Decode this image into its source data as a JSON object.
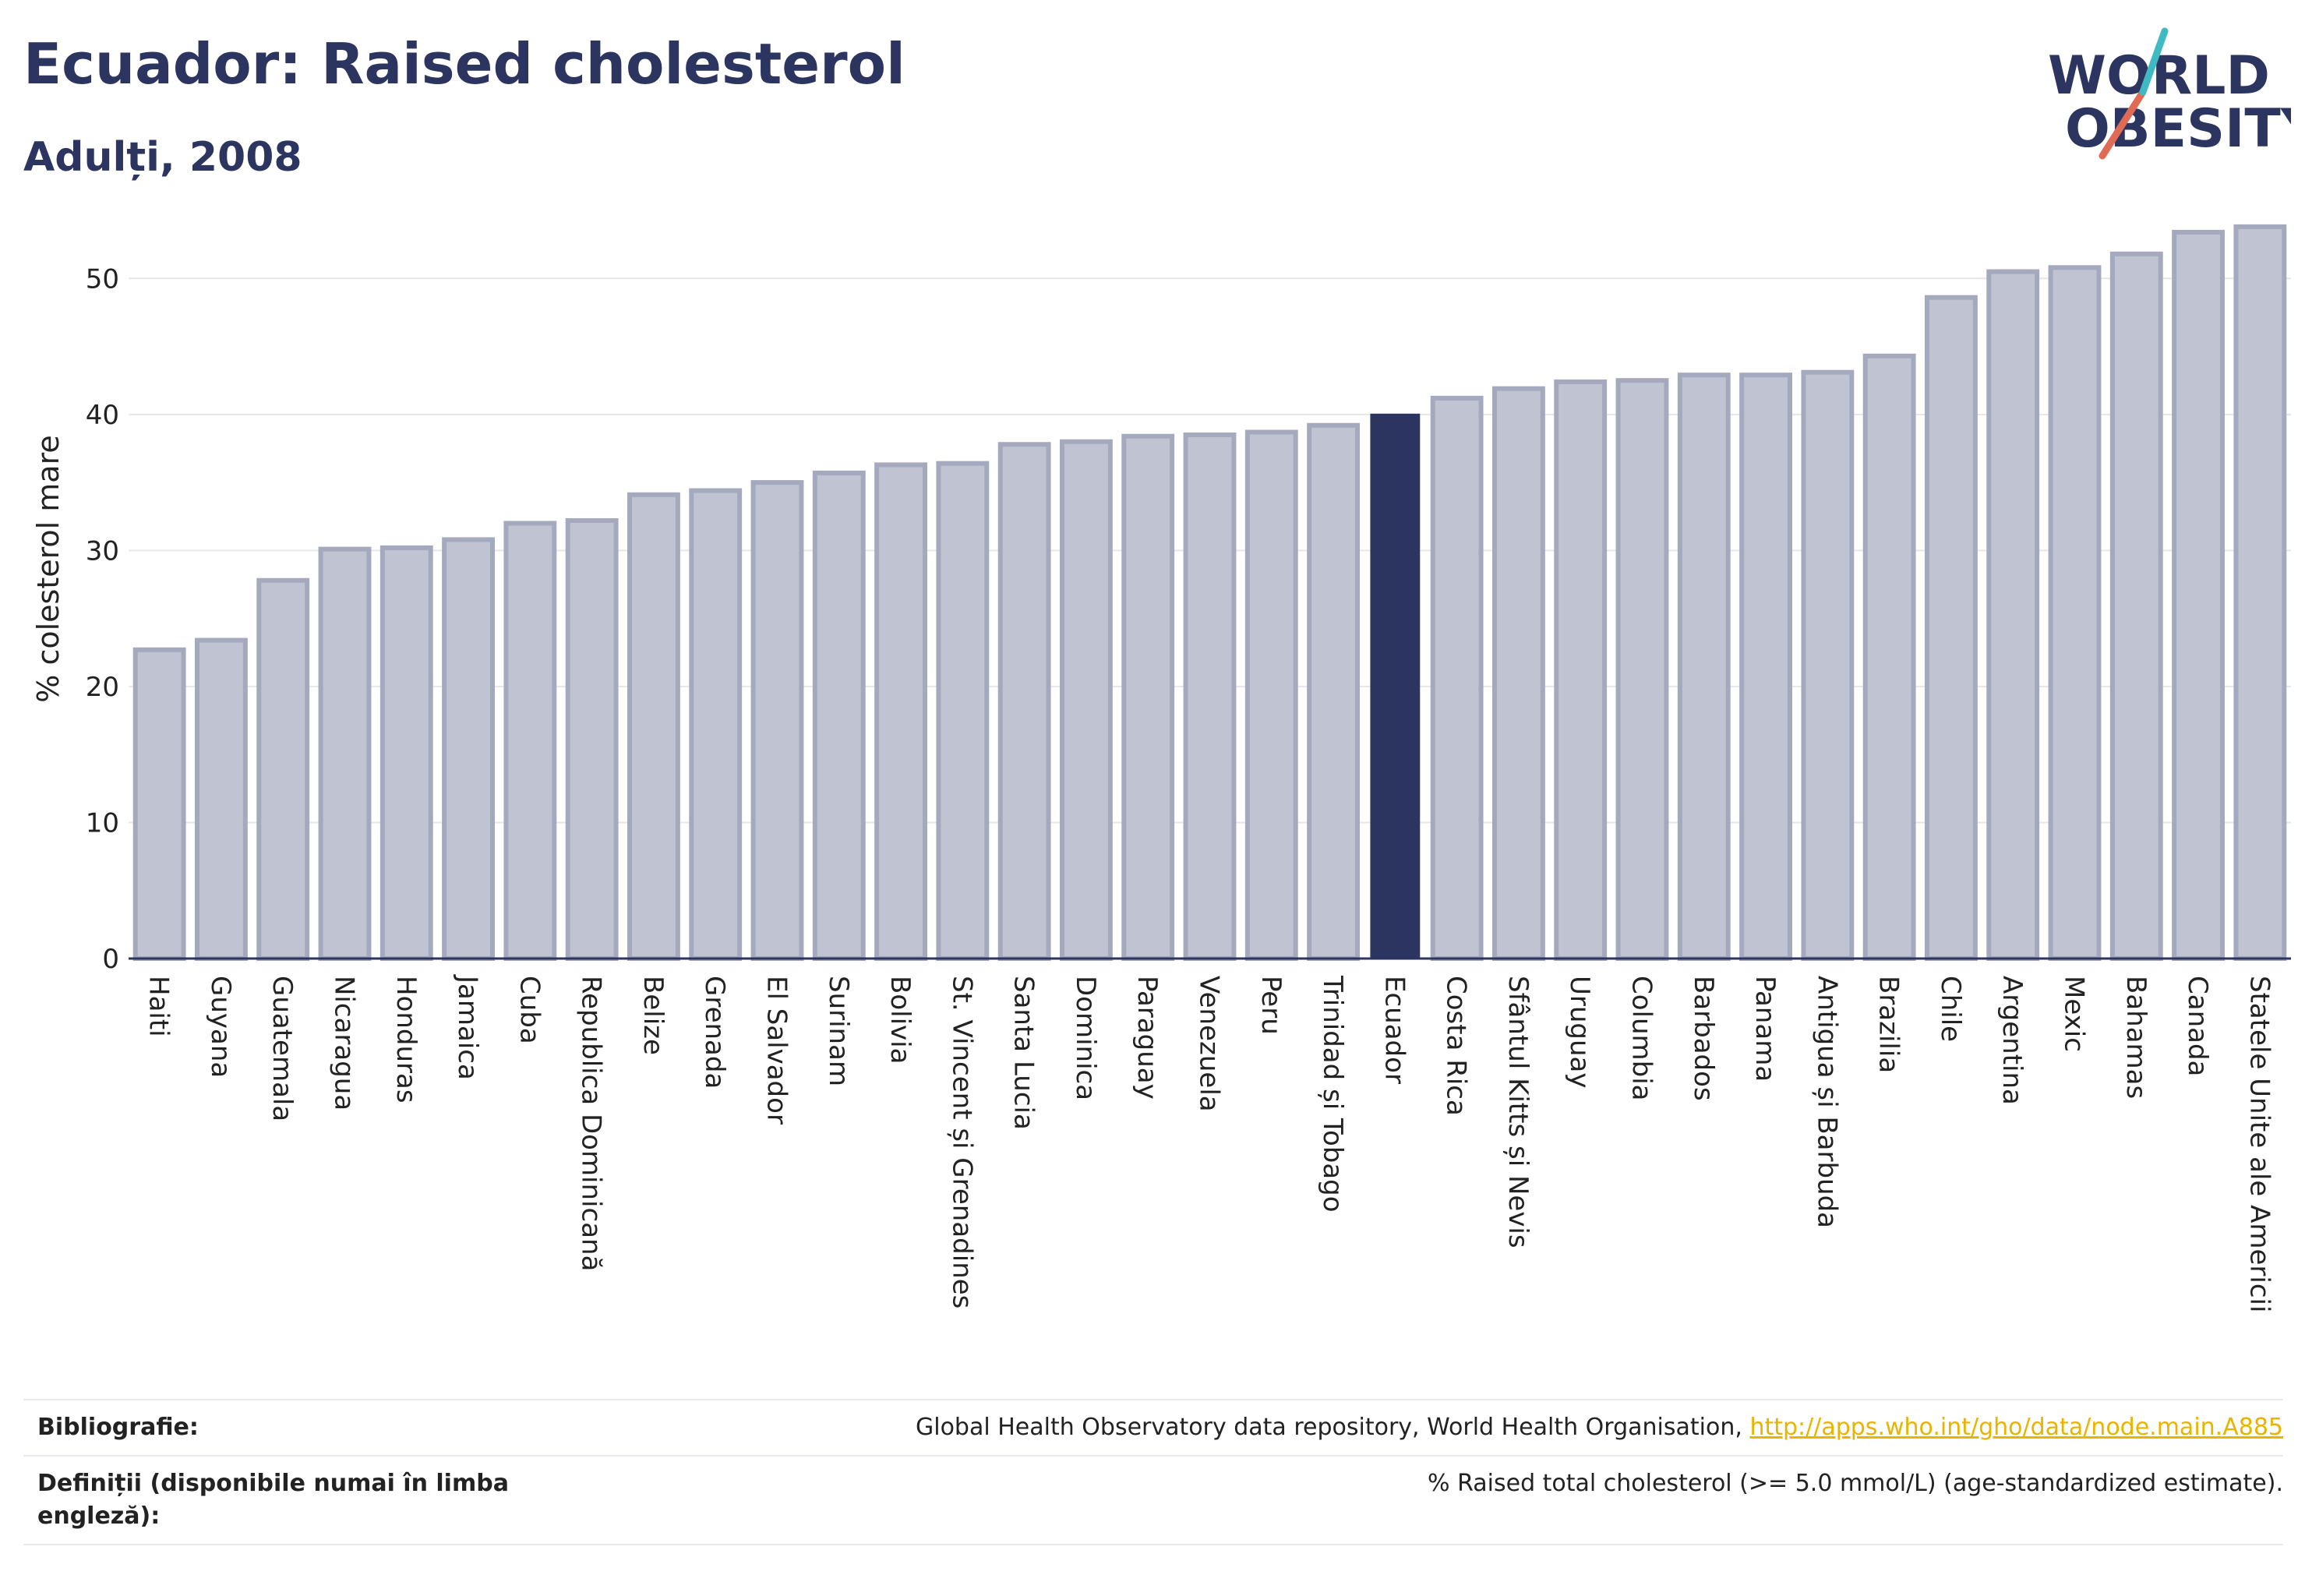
{
  "title": "Ecuador: Raised cholesterol",
  "subtitle": "Adulți, 2008",
  "logo": {
    "line1": "WORLD",
    "line2": "OBESITY"
  },
  "colors": {
    "highlight": "#2b3560",
    "bar": "#c0c3d1",
    "bar_border": "#a4a9bd",
    "grid": "#e6e6ea",
    "link": "#e8b400",
    "logo_slash": "#e06b55",
    "logo_slash2": "#3fbac2"
  },
  "chart_data": {
    "type": "bar",
    "ylabel": "% colesterol mare",
    "ylim": [
      0,
      55
    ],
    "yticks": [
      0,
      10,
      20,
      30,
      40,
      50
    ],
    "highlight": "Ecuador",
    "categories": [
      "Haiti",
      "Guyana",
      "Guatemala",
      "Nicaragua",
      "Honduras",
      "Jamaica",
      "Cuba",
      "Republica Dominicană",
      "Belize",
      "Grenada",
      "El Salvador",
      "Surinam",
      "Bolivia",
      "St. Vincent și Grenadines",
      "Santa Lucia",
      "Dominica",
      "Paraguay",
      "Venezuela",
      "Peru",
      "Trinidad și Tobago",
      "Ecuador",
      "Costa Rica",
      "Sfântul Kitts și Nevis",
      "Uruguay",
      "Columbia",
      "Barbados",
      "Panama",
      "Antigua și Barbuda",
      "Brazilia",
      "Chile",
      "Argentina",
      "Mexic",
      "Bahamas",
      "Canada",
      "Statele Unite ale Americii"
    ],
    "values": [
      22.7,
      23.4,
      27.8,
      30.1,
      30.2,
      30.8,
      32.0,
      32.2,
      34.1,
      34.4,
      35.0,
      35.7,
      36.3,
      36.4,
      37.8,
      38.0,
      38.4,
      38.5,
      38.7,
      39.2,
      40.0,
      41.2,
      41.9,
      42.4,
      42.5,
      42.9,
      42.9,
      43.1,
      44.3,
      48.6,
      50.5,
      50.8,
      51.8,
      53.4,
      53.8
    ]
  },
  "footer": {
    "bibliography_label": "Bibliografie:",
    "bibliography_text": "Global Health Observatory data repository, World Health Organisation,",
    "bibliography_link": "http://apps.who.int/gho/data/node.main.A885",
    "definitions_label": "Definiții (disponibile numai în limba engleză):",
    "definitions_text": "% Raised total cholesterol (>= 5.0 mmol/L) (age-standardized estimate)."
  }
}
